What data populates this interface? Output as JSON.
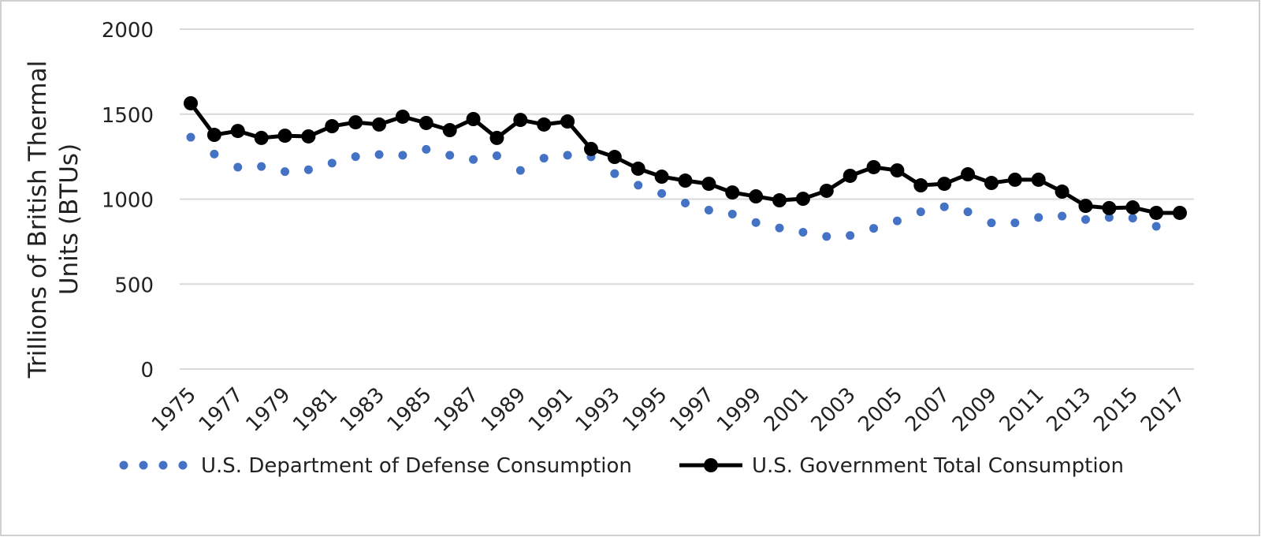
{
  "chart_data": {
    "type": "line",
    "y_label": "Trillions of British Thermal Units (BTUs)",
    "x": [
      1975,
      1976,
      1977,
      1978,
      1979,
      1980,
      1981,
      1982,
      1983,
      1984,
      1985,
      1986,
      1987,
      1988,
      1989,
      1990,
      1991,
      1992,
      1993,
      1994,
      1995,
      1996,
      1997,
      1998,
      1999,
      2000,
      2001,
      2002,
      2003,
      2004,
      2005,
      2006,
      2007,
      2008,
      2009,
      2010,
      2011,
      2012,
      2013,
      2014,
      2015,
      2016,
      2017
    ],
    "xlim": [
      1975,
      2017
    ],
    "xticks": [
      1975,
      1977,
      1979,
      1981,
      1983,
      1985,
      1987,
      1989,
      1991,
      1993,
      1995,
      1997,
      1999,
      2001,
      2003,
      2005,
      2007,
      2009,
      2011,
      2013,
      2015,
      2017
    ],
    "ylim": [
      0,
      2000
    ],
    "yticks": [
      0,
      500,
      1000,
      1500,
      2000
    ],
    "grid": true,
    "legend": "bottom",
    "series": [
      {
        "name": "U.S. Department of Defense Consumption",
        "color": "#4472c4",
        "style": "dots",
        "values": [
          1364,
          1265,
          1188,
          1192,
          1162,
          1173,
          1212,
          1250,
          1262,
          1258,
          1293,
          1258,
          1233,
          1255,
          1169,
          1241,
          1258,
          1249,
          1150,
          1082,
          1033,
          977,
          935,
          912,
          862,
          830,
          805,
          780,
          786,
          828,
          872,
          925,
          955,
          925,
          860,
          860,
          892,
          900,
          880,
          892,
          888,
          840,
          null
        ]
      },
      {
        "name": "U.S. Government Total Consumption",
        "color": "#000000",
        "style": "line-markers",
        "values": [
          1564,
          1378,
          1401,
          1360,
          1373,
          1369,
          1429,
          1452,
          1439,
          1485,
          1448,
          1406,
          1471,
          1360,
          1466,
          1439,
          1457,
          1295,
          1248,
          1179,
          1132,
          1109,
          1090,
          1039,
          1016,
          993,
          1002,
          1049,
          1137,
          1188,
          1169,
          1081,
          1090,
          1146,
          1095,
          1114,
          1114,
          1044,
          960,
          947,
          951,
          919,
          919
        ]
      }
    ]
  }
}
